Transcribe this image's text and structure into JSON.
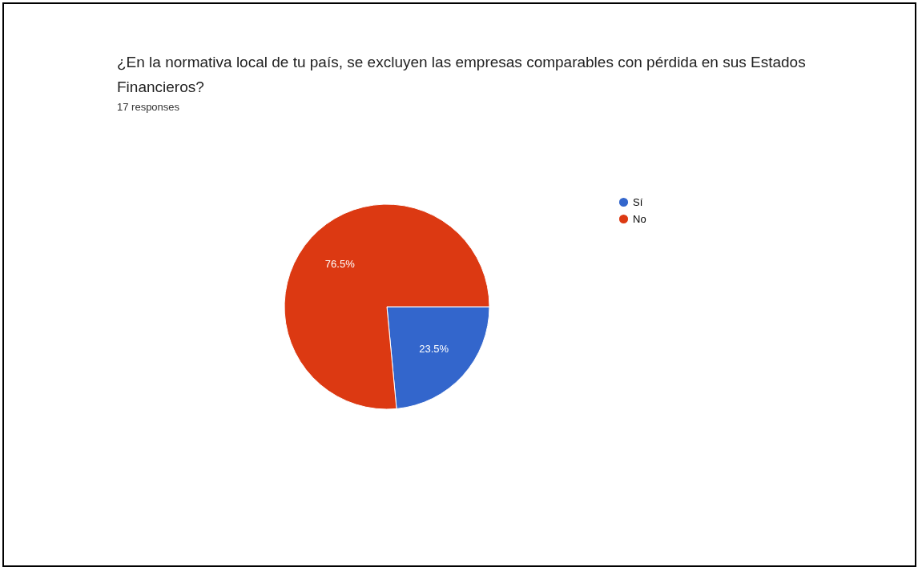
{
  "chart_data": {
    "type": "pie",
    "title": "¿En la normativa local de tu país, se excluyen las empresas comparables con pérdida en sus Estados Financieros?",
    "subtitle": "17 responses",
    "categories": [
      "Sí",
      "No"
    ],
    "values": [
      23.5,
      76.5
    ],
    "colors": [
      "#3366cc",
      "#dc3912"
    ],
    "value_labels": [
      "23.5%",
      "76.5%"
    ],
    "legend": "right"
  }
}
